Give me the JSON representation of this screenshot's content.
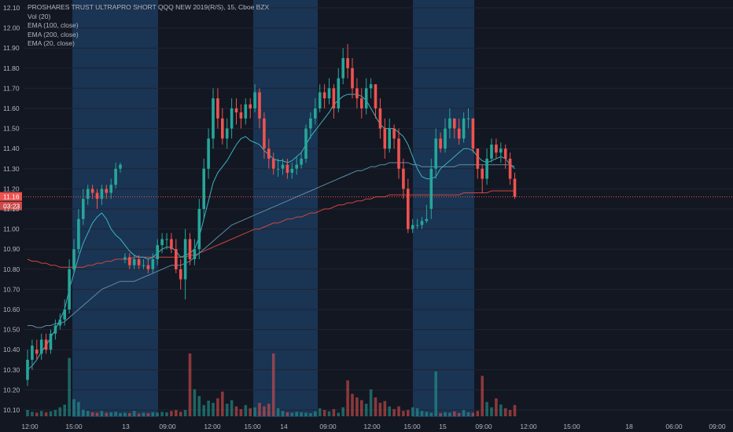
{
  "legend": {
    "title": "PROSHARES TRUST ULTRAPRO SHORT QQQ NEW 2019(R/S), 15, Cboe BZX",
    "vol": "Vol (20)",
    "ema100": "EMA (100, close)",
    "ema200": "EMA (200, close)",
    "ema20": "EMA (20, close)"
  },
  "colors": {
    "background": "#131722",
    "session_band": "#1c3a5c",
    "up": "#26a69a",
    "down": "#ef5350",
    "ema20": "#3bb3c4",
    "ema100": "#5d8ca8",
    "ema200": "#d0473f",
    "text": "#b2b5be"
  },
  "price_tag": {
    "price": "11.16",
    "countdown": "03:23"
  },
  "chart_data": {
    "type": "candlestick",
    "symbol": "PROSHARES TRUST ULTRAPRO SHORT QQQ NEW 2019(R/S)",
    "interval": "15",
    "exchange": "Cboe BZX",
    "ylim": [
      10.05,
      12.15
    ],
    "y_ticks": [
      10.1,
      10.2,
      10.3,
      10.4,
      10.5,
      10.6,
      10.7,
      10.8,
      10.9,
      11.0,
      11.1,
      11.2,
      11.3,
      11.4,
      11.5,
      11.6,
      11.7,
      11.8,
      11.9,
      12.0,
      12.1
    ],
    "x_ticks": [
      "12:00",
      "15:00",
      "13",
      "09:00",
      "12:00",
      "15:00",
      "14",
      "09:00",
      "12:00",
      "15:00",
      "15",
      "09:00",
      "12:00",
      "15:00",
      "18",
      "06:00",
      "09:00"
    ],
    "last_price": 11.16,
    "opens": [
      10.25,
      10.35,
      10.4,
      10.38,
      10.45,
      10.4,
      10.48,
      10.52,
      10.55,
      10.6,
      10.8,
      10.9,
      11.05,
      11.15,
      11.2,
      11.18,
      11.15,
      11.2,
      11.18,
      11.22,
      11.3,
      10.85,
      10.86,
      10.82,
      10.85,
      10.82,
      10.82,
      10.8,
      10.85,
      10.92,
      10.95,
      10.95,
      10.9,
      10.8,
      10.75,
      10.95,
      10.85,
      10.9,
      11.1,
      11.3,
      11.45,
      11.65,
      11.55,
      11.45,
      11.5,
      11.6,
      11.58,
      11.55,
      11.62,
      11.6,
      11.68,
      11.55,
      11.4,
      11.35,
      11.3,
      11.3,
      11.32,
      11.28,
      11.3,
      11.32,
      11.35,
      11.5,
      11.55,
      11.6,
      11.68,
      11.65,
      11.7,
      11.6,
      11.75,
      11.85,
      11.8,
      11.7,
      11.65,
      11.6,
      11.7,
      11.72,
      11.6,
      11.5,
      11.4,
      11.5,
      11.45,
      11.3,
      11.2,
      11.0,
      11.02,
      11.02,
      11.04,
      11.1,
      11.3,
      11.45,
      11.4,
      11.5,
      11.55,
      11.5,
      11.45,
      11.55,
      11.55,
      11.4,
      11.3,
      11.25,
      11.35,
      11.42,
      11.38,
      11.4,
      11.35,
      11.25
    ],
    "closes": [
      10.35,
      10.42,
      10.38,
      10.45,
      10.4,
      10.48,
      10.52,
      10.55,
      10.6,
      10.8,
      10.9,
      11.05,
      11.15,
      11.2,
      11.18,
      11.15,
      11.2,
      11.18,
      11.22,
      11.3,
      11.32,
      10.86,
      10.82,
      10.85,
      10.82,
      10.82,
      10.8,
      10.85,
      10.92,
      10.95,
      10.95,
      10.9,
      10.8,
      10.75,
      10.95,
      10.85,
      10.9,
      11.1,
      11.3,
      11.45,
      11.65,
      11.55,
      11.45,
      11.5,
      11.6,
      11.58,
      11.55,
      11.62,
      11.6,
      11.68,
      11.55,
      11.4,
      11.35,
      11.3,
      11.3,
      11.32,
      11.28,
      11.3,
      11.32,
      11.35,
      11.5,
      11.55,
      11.6,
      11.68,
      11.65,
      11.7,
      11.6,
      11.75,
      11.85,
      11.8,
      11.7,
      11.65,
      11.6,
      11.7,
      11.72,
      11.6,
      11.5,
      11.4,
      11.5,
      11.45,
      11.3,
      11.2,
      11.0,
      11.02,
      11.02,
      11.04,
      11.05,
      11.3,
      11.45,
      11.4,
      11.5,
      11.55,
      11.5,
      11.45,
      11.55,
      11.55,
      11.4,
      11.3,
      11.25,
      11.35,
      11.42,
      11.38,
      11.4,
      11.35,
      11.25,
      11.16
    ],
    "highs": [
      10.4,
      10.45,
      10.45,
      10.48,
      10.48,
      10.5,
      10.55,
      10.58,
      10.65,
      10.85,
      10.95,
      11.1,
      11.2,
      11.22,
      11.22,
      11.2,
      11.22,
      11.22,
      11.25,
      11.33,
      11.33,
      10.88,
      10.88,
      10.87,
      10.87,
      10.85,
      10.85,
      10.88,
      10.95,
      10.98,
      10.98,
      10.98,
      10.95,
      10.85,
      11.0,
      10.98,
      10.95,
      11.15,
      11.35,
      11.5,
      11.7,
      11.7,
      11.6,
      11.55,
      11.65,
      11.65,
      11.62,
      11.65,
      11.65,
      11.72,
      11.7,
      11.58,
      11.45,
      11.38,
      11.35,
      11.35,
      11.35,
      11.33,
      11.36,
      11.38,
      11.52,
      11.58,
      11.65,
      11.72,
      11.72,
      11.75,
      11.72,
      11.8,
      11.9,
      11.92,
      11.85,
      11.75,
      11.7,
      11.75,
      11.75,
      11.72,
      11.65,
      11.55,
      11.55,
      11.52,
      11.5,
      11.35,
      11.25,
      11.05,
      11.05,
      11.06,
      11.12,
      11.35,
      11.5,
      11.48,
      11.55,
      11.6,
      11.55,
      11.55,
      11.58,
      11.6,
      11.55,
      11.4,
      11.32,
      11.4,
      11.45,
      11.45,
      11.43,
      11.42,
      11.38,
      11.28
    ],
    "lows": [
      10.22,
      10.3,
      10.35,
      10.35,
      10.38,
      10.38,
      10.45,
      10.5,
      10.52,
      10.58,
      10.78,
      10.88,
      11.02,
      11.12,
      11.15,
      11.1,
      11.12,
      11.15,
      11.15,
      11.2,
      11.28,
      10.83,
      10.8,
      10.8,
      10.8,
      10.8,
      10.78,
      10.78,
      10.82,
      10.88,
      10.9,
      10.88,
      10.78,
      10.7,
      10.65,
      10.82,
      10.82,
      10.85,
      11.05,
      11.25,
      11.4,
      11.5,
      11.42,
      11.4,
      11.45,
      11.52,
      11.5,
      11.52,
      11.55,
      11.58,
      11.5,
      11.35,
      11.3,
      11.27,
      11.26,
      11.27,
      11.25,
      11.25,
      11.27,
      11.3,
      11.33,
      11.45,
      11.52,
      11.58,
      11.6,
      11.62,
      11.55,
      11.58,
      11.72,
      11.75,
      11.65,
      11.6,
      11.55,
      11.57,
      11.65,
      11.55,
      11.45,
      11.35,
      11.38,
      11.4,
      11.25,
      11.15,
      10.98,
      10.98,
      11.0,
      11.0,
      11.03,
      11.05,
      11.25,
      11.38,
      11.38,
      11.45,
      11.45,
      11.42,
      11.43,
      11.5,
      11.38,
      11.25,
      11.18,
      11.22,
      11.33,
      11.35,
      11.33,
      11.3,
      11.22,
      11.15
    ],
    "volumes": [
      14,
      10,
      8,
      12,
      9,
      11,
      14,
      20,
      26,
      130,
      38,
      32,
      15,
      12,
      9,
      8,
      12,
      8,
      9,
      10,
      7,
      8,
      7,
      12,
      6,
      8,
      7,
      9,
      8,
      10,
      9,
      12,
      14,
      10,
      14,
      140,
      60,
      45,
      25,
      35,
      30,
      40,
      55,
      28,
      36,
      22,
      16,
      25,
      18,
      20,
      30,
      22,
      28,
      140,
      18,
      12,
      9,
      8,
      10,
      9,
      8,
      7,
      11,
      18,
      14,
      11,
      16,
      8,
      20,
      80,
      50,
      42,
      36,
      28,
      60,
      42,
      30,
      34,
      22,
      16,
      22,
      12,
      14,
      20,
      18,
      12,
      10,
      8,
      100,
      7,
      9,
      8,
      11,
      7,
      14,
      9,
      8,
      12,
      90,
      32,
      20,
      40,
      26,
      18,
      14,
      25
    ],
    "ema20": [
      10.3,
      10.32,
      10.35,
      10.39,
      10.42,
      10.46,
      10.5,
      10.55,
      10.6,
      10.7,
      10.78,
      10.86,
      10.93,
      10.98,
      11.03,
      11.06,
      11.08,
      11.05,
      11.0,
      10.97,
      10.95,
      10.92,
      10.89,
      10.87,
      10.86,
      10.86,
      10.85,
      10.86,
      10.88,
      10.9,
      10.91,
      10.91,
      10.89,
      10.86,
      10.87,
      10.88,
      10.9,
      10.96,
      11.05,
      11.14,
      11.23,
      11.28,
      11.31,
      11.34,
      11.38,
      11.42,
      11.45,
      11.46,
      11.44,
      11.43,
      11.42,
      11.39,
      11.37,
      11.35,
      11.34,
      11.34,
      11.33,
      11.34,
      11.36,
      11.38,
      11.42,
      11.46,
      11.49,
      11.52,
      11.55,
      11.58,
      11.62,
      11.64,
      11.66,
      11.67,
      11.67,
      11.67,
      11.66,
      11.64,
      11.6,
      11.56,
      11.52,
      11.5,
      11.5,
      11.5,
      11.48,
      11.46,
      11.42,
      11.36,
      11.3,
      11.26,
      11.25,
      11.25,
      11.26,
      11.3,
      11.32,
      11.34,
      11.36,
      11.38,
      11.4,
      11.4,
      11.39,
      11.36,
      11.34,
      11.33,
      11.34,
      11.35,
      11.36,
      11.35,
      11.32,
      11.3
    ],
    "ema100": [
      10.52,
      10.52,
      10.51,
      10.51,
      10.52,
      10.52,
      10.53,
      10.53,
      10.54,
      10.56,
      10.58,
      10.6,
      10.62,
      10.64,
      10.66,
      10.68,
      10.7,
      10.71,
      10.72,
      10.73,
      10.74,
      10.74,
      10.74,
      10.74,
      10.75,
      10.76,
      10.77,
      10.78,
      10.79,
      10.8,
      10.81,
      10.82,
      10.82,
      10.82,
      10.83,
      10.84,
      10.86,
      10.88,
      10.9,
      10.92,
      10.94,
      10.96,
      10.98,
      11.0,
      11.02,
      11.03,
      11.04,
      11.05,
      11.06,
      11.07,
      11.08,
      11.09,
      11.1,
      11.11,
      11.12,
      11.13,
      11.14,
      11.15,
      11.16,
      11.17,
      11.18,
      11.19,
      11.2,
      11.21,
      11.22,
      11.23,
      11.24,
      11.25,
      11.26,
      11.27,
      11.28,
      11.29,
      11.29,
      11.3,
      11.31,
      11.31,
      11.32,
      11.32,
      11.33,
      11.33,
      11.33,
      11.33,
      11.33,
      11.32,
      11.32,
      11.31,
      11.31,
      11.31,
      11.31,
      11.31,
      11.31,
      11.31,
      11.31,
      11.32,
      11.32,
      11.32,
      11.32,
      11.32,
      11.32,
      11.32,
      11.32,
      11.32,
      11.32,
      11.32,
      11.32,
      11.31
    ],
    "ema200": [
      10.85,
      10.84,
      10.84,
      10.83,
      10.83,
      10.82,
      10.82,
      10.81,
      10.81,
      10.81,
      10.81,
      10.81,
      10.81,
      10.82,
      10.82,
      10.83,
      10.83,
      10.84,
      10.84,
      10.85,
      10.85,
      10.85,
      10.85,
      10.86,
      10.86,
      10.86,
      10.86,
      10.86,
      10.86,
      10.86,
      10.86,
      10.86,
      10.86,
      10.86,
      10.86,
      10.87,
      10.87,
      10.88,
      10.89,
      10.9,
      10.91,
      10.92,
      10.93,
      10.94,
      10.95,
      10.96,
      10.97,
      10.98,
      10.99,
      11.0,
      11.0,
      11.01,
      11.02,
      11.03,
      11.03,
      11.04,
      11.05,
      11.05,
      11.06,
      11.06,
      11.07,
      11.08,
      11.08,
      11.09,
      11.1,
      11.1,
      11.11,
      11.12,
      11.12,
      11.13,
      11.13,
      11.14,
      11.14,
      11.15,
      11.15,
      11.16,
      11.16,
      11.16,
      11.17,
      11.17,
      11.17,
      11.17,
      11.17,
      11.17,
      11.17,
      11.17,
      11.17,
      11.17,
      11.17,
      11.17,
      11.17,
      11.17,
      11.17,
      11.17,
      11.18,
      11.18,
      11.18,
      11.18,
      11.18,
      11.18,
      11.19,
      11.19,
      11.19,
      11.19,
      11.19,
      11.19
    ]
  }
}
